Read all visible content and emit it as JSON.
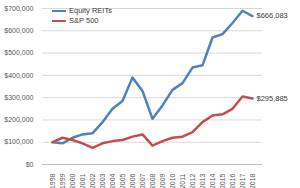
{
  "chart_data": {
    "type": "line",
    "categories": [
      "1998",
      "1999",
      "2000",
      "2001",
      "2002",
      "2003",
      "2004",
      "2005",
      "2006",
      "2007",
      "2008",
      "2009",
      "2010",
      "2011",
      "2012",
      "2013",
      "2014",
      "2015",
      "2016",
      "2017",
      "2018"
    ],
    "series": [
      {
        "name": "Equity REITs",
        "color": "#4f81bd",
        "values": [
          100000,
          95000,
          120000,
          135000,
          140000,
          190000,
          250000,
          285000,
          390000,
          330000,
          205000,
          265000,
          335000,
          365000,
          435000,
          445000,
          570000,
          585000,
          635000,
          690000,
          666083
        ],
        "value_labels": [
          null,
          null,
          null,
          null,
          null,
          null,
          null,
          null,
          null,
          null,
          null,
          null,
          null,
          null,
          null,
          null,
          null,
          null,
          null,
          null,
          "$666,083"
        ]
      },
      {
        "name": "S&P 500",
        "color": "#c0504d",
        "values": [
          100000,
          120000,
          110000,
          95000,
          75000,
          95000,
          105000,
          110000,
          125000,
          135000,
          85000,
          105000,
          120000,
          125000,
          145000,
          190000,
          220000,
          225000,
          250000,
          305000,
          295885
        ],
        "value_labels": [
          null,
          null,
          null,
          null,
          null,
          null,
          null,
          null,
          null,
          null,
          null,
          null,
          null,
          null,
          null,
          null,
          null,
          null,
          null,
          null,
          "$295,885"
        ]
      }
    ],
    "ylim": [
      0,
      700000
    ],
    "yticks": [
      {
        "value": 0,
        "label": "$0"
      },
      {
        "value": 100000,
        "label": "$100,000"
      },
      {
        "value": 200000,
        "label": "$200,000"
      },
      {
        "value": 300000,
        "label": "$300,000"
      },
      {
        "value": 400000,
        "label": "$400,000"
      },
      {
        "value": 500000,
        "label": "$500,000"
      },
      {
        "value": 600000,
        "label": "$600,000"
      },
      {
        "value": 700000,
        "label": "$700,000"
      }
    ],
    "grid": true,
    "legend": "top-left",
    "data_labels": true
  }
}
